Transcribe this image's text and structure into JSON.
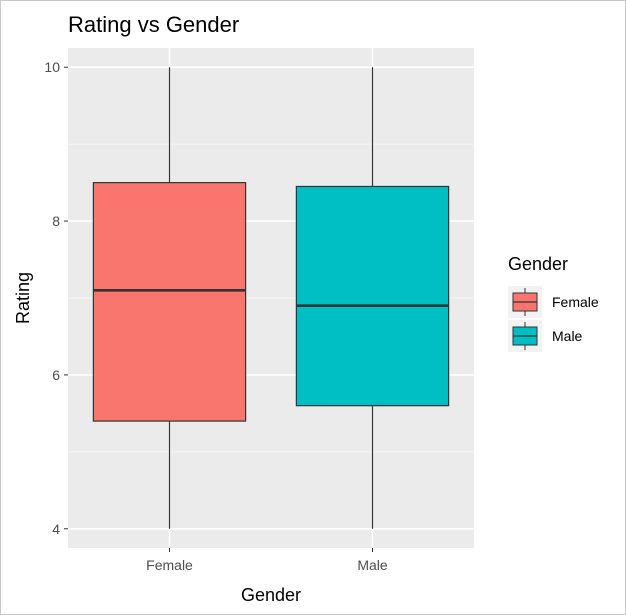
{
  "chart_data": {
    "type": "boxplot",
    "title": "Rating vs Gender",
    "xlabel": "Gender",
    "ylabel": "Rating",
    "categories": [
      "Female",
      "Male"
    ],
    "ylim": [
      3.75,
      10.25
    ],
    "yticks": [
      4,
      6,
      8,
      10
    ],
    "grid": true,
    "legend": {
      "title": "Gender",
      "placement": "right",
      "entries": [
        "Female",
        "Male"
      ]
    },
    "boxes": [
      {
        "category": "Female",
        "min": 4.0,
        "q1": 5.4,
        "median": 7.1,
        "q3": 8.5,
        "max": 10.0,
        "color": "#F8766D"
      },
      {
        "category": "Male",
        "min": 4.0,
        "q1": 5.6,
        "median": 6.9,
        "q3": 8.45,
        "max": 10.0,
        "color": "#00BFC4"
      }
    ]
  },
  "colors": {
    "panel_background": "#EBEBEB",
    "grid_major": "#FFFFFF",
    "outline": "#333333"
  }
}
